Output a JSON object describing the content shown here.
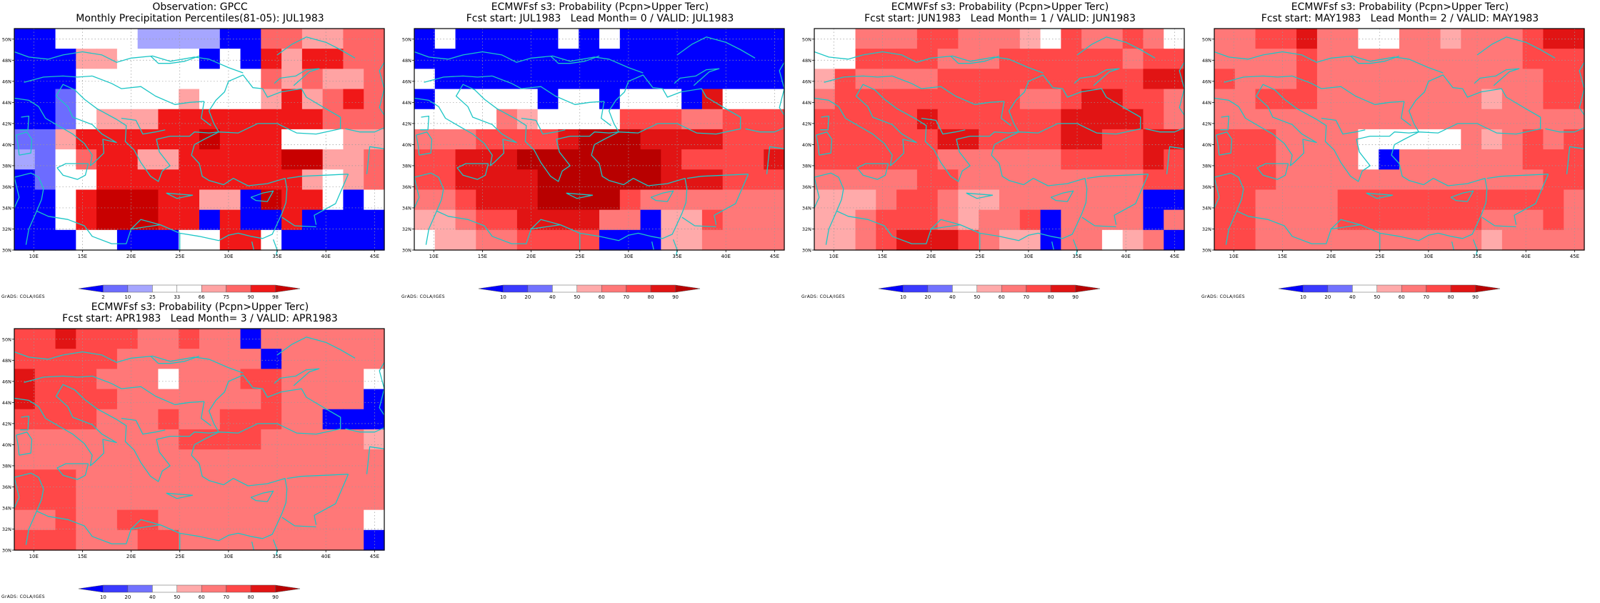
{
  "axes": {
    "lon_ticks": [
      "10E",
      "15E",
      "20E",
      "25E",
      "30E",
      "35E",
      "40E",
      "45E"
    ],
    "lat_ticks": [
      "30N",
      "32N",
      "34N",
      "36N",
      "38N",
      "40N",
      "42N",
      "44N",
      "46N",
      "48N",
      "50N"
    ],
    "lon_range": [
      8,
      46
    ],
    "lat_range": [
      30,
      51
    ],
    "grid": "dotted"
  },
  "colors": {
    "coast": "#1cc6c6",
    "obs_scale": [
      "#0000ff",
      "#6c6cff",
      "#a6a6ff",
      "#ffffff",
      "#ffffff",
      "#ffa3a3",
      "#ff6666",
      "#f01818",
      "#c80000"
    ],
    "prob_scale": [
      "#0000ff",
      "#3a3aff",
      "#7272ff",
      "#ffffff",
      "#ffaaaa",
      "#ff7878",
      "#ff4848",
      "#e11414",
      "#b80000"
    ]
  },
  "credit": "GrADS: COLA/IGES",
  "panels": [
    {
      "title1": "Observation: GPCC",
      "title2": "Monthly Precipitation Percentiles(81-05): JUL1983",
      "legend_labels": [
        "2",
        "10",
        "25",
        "33",
        "66",
        "75",
        "90",
        "98"
      ],
      "scale": "obs",
      "cells": [
        "003343222200665566",
        "000554444040757766",
        "000344444444656556",
        "001344445444575676",
        "001355577777777666",
        "115777777877744455",
        "214677557777788556",
        "014477777777775456",
        "004788877550877304",
        "004788877070070000",
        "000440004477300000"
      ]
    },
    {
      "title1": "ECMWFsf s3: Probability (Pcpn>Upper Terc)",
      "title2": "Fcst start: JUL1983   Lead Month= 0 / VALID: JUL1983",
      "legend_labels": [
        "10",
        "20",
        "40",
        "50",
        "60",
        "70",
        "80",
        "90"
      ],
      "scale": "prob",
      "cells": [
        "030000030300000000",
        "000000000000000000",
        "300000000000000000",
        "033333033033307333",
        "333354333366655666",
        "555666678887777666",
        "667778888888766667",
        "667777888888777666",
        "556777888865555555",
        "445667777550446555",
        "344556666000445555"
      ]
    },
    {
      "title1": "ECMWFsf s3: Probability (Pcpn>Upper Terc)",
      "title2": "Fcst start: JUN1983   Lead Month= 1 / VALID: JUN1983",
      "legend_labels": [
        "10",
        "20",
        "40",
        "50",
        "60",
        "70",
        "80",
        "90"
      ],
      "scale": "prob",
      "cells": [
        "335556655543655653",
        "336666555666666566",
        "465555666666666677",
        "566666666655677665",
        "666667666666777765",
        "666666776666776677",
        "666666555555666676",
        "555556655555555566",
        "444566544555555500",
        "445666545560555505",
        "445677765440553450"
      ]
    },
    {
      "title1": "ECMWFsf s3: Probability (Pcpn>Upper Terc)",
      "title2": "Fcst start: MAY1983   Lead Month= 2 / VALID: MAY1983",
      "legend_labels": [
        "10",
        "20",
        "40",
        "50",
        "60",
        "70",
        "80",
        "90"
      ],
      "scale": "prob",
      "cells": [
        "556675533554555677",
        "555565555555555666",
        "655565555555555566",
        "556665555555545566",
        "555555555555555555",
        "666555533333545656",
        "666555530555555666",
        "666555555555555566",
        "665555666666666665",
        "665555666666655565",
        "665555555555545555"
      ]
    },
    {
      "title1": "ECMWFsf s3: Probability (Pcpn>Upper Terc)",
      "title2": "Fcst start: APR1983   Lead Month= 3 / VALID: APR1983",
      "legend_labels": [
        "10",
        "20",
        "40",
        "50",
        "60",
        "70",
        "80",
        "90"
      ],
      "scale": "prob",
      "cells": [
        "667666556550555555",
        "666665555555055555",
        "766655535556655553",
        "766665555555655550",
        "666655565566655000",
        "555555556666555554",
        "555555555555555555",
        "666555555555555555",
        "666555555555555555",
        "556556655555555553",
        "666555665555555550"
      ]
    }
  ]
}
